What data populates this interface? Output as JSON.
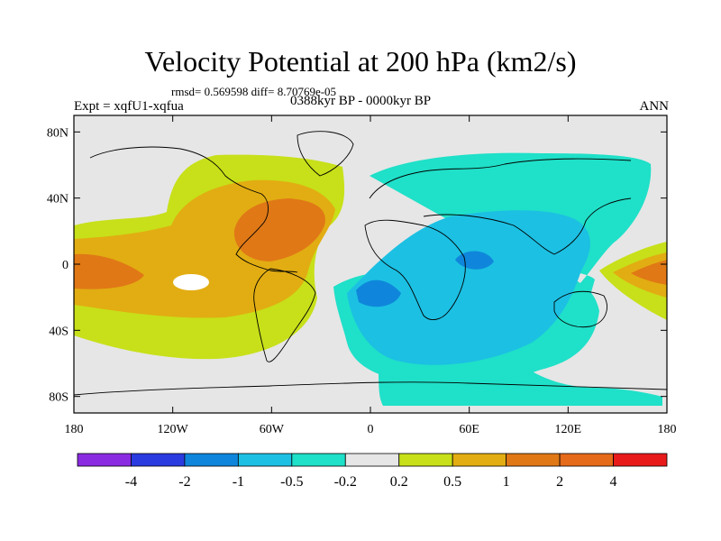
{
  "title": "Velocity Potential at 200 hPa (km2/s)",
  "stats_line": "rmsd= 0.569598 diff= 8.70769e-05",
  "experiment": "Expt = xqfU1-xqfua",
  "period": "0388kyr BP - 0000kyr BP",
  "season": "ANN",
  "map": {
    "lon_ticks": [
      "180",
      "120W",
      "60W",
      "0",
      "60E",
      "120E",
      "180"
    ],
    "lat_ticks": [
      "80N",
      "40N",
      "0",
      "40S",
      "80S"
    ],
    "colors": {
      "neutral": "#e6e6e6",
      "pos_02_05": "#c7e019",
      "pos_05_1": "#e2ad12",
      "pos_1_2": "#e07816",
      "neg_02_05": "#1fe0c8",
      "neg_05_1": "#1cc0e3",
      "neg_1_2": "#0f86db"
    }
  },
  "colorbar": {
    "labels": [
      "-4",
      "-2",
      "-1",
      "-0.5",
      "-0.2",
      "0.2",
      "0.5",
      "1",
      "2",
      "4"
    ],
    "colors": [
      "#8a2be2",
      "#2a3be0",
      "#0f86db",
      "#1cc0e3",
      "#1fe0c8",
      "#e6e6e6",
      "#c7e019",
      "#e2ad12",
      "#e07816",
      "#e56a1a",
      "#e81a1a"
    ]
  }
}
